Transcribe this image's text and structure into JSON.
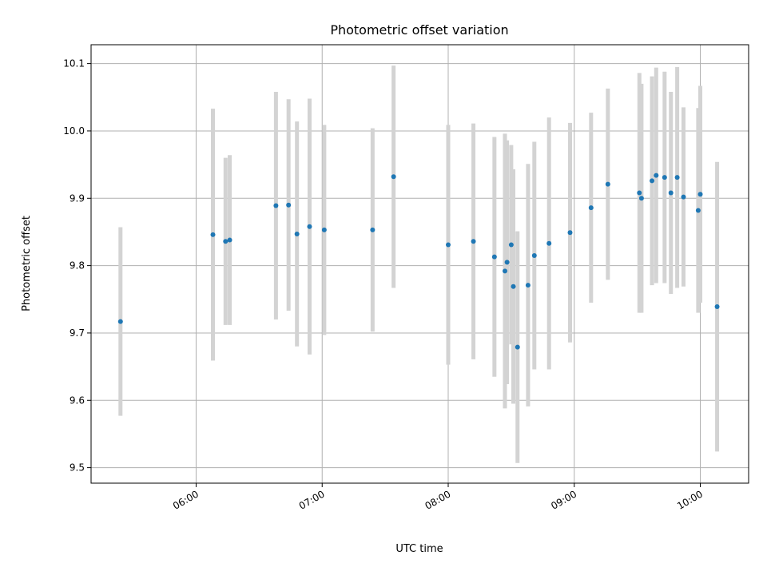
{
  "chart_data": {
    "type": "scatter",
    "title": "Photometric offset variation",
    "xlabel": "UTC time",
    "ylabel": "Photometric offset",
    "x_ticks": [
      "06:00",
      "07:00",
      "08:00",
      "09:00",
      "10:00"
    ],
    "y_ticks": [
      "9.5",
      "9.6",
      "9.7",
      "9.8",
      "9.9",
      "10.0",
      "10.1"
    ],
    "xlim": [
      "05:10",
      "10:23"
    ],
    "ylim": [
      9.477,
      10.128
    ],
    "grid": true,
    "colors": {
      "marker": "#1f77b4",
      "errorbar": "#d3d3d3",
      "grid": "#b0b0b0"
    },
    "series": [
      {
        "points": [
          {
            "t": "05:24",
            "y": 9.717,
            "err": 0.14
          },
          {
            "t": "06:08",
            "y": 9.846,
            "err": 0.187
          },
          {
            "t": "06:14",
            "y": 9.836,
            "err": 0.124
          },
          {
            "t": "06:16",
            "y": 9.838,
            "err": 0.126
          },
          {
            "t": "06:38",
            "y": 9.889,
            "err": 0.169
          },
          {
            "t": "06:44",
            "y": 9.89,
            "err": 0.157
          },
          {
            "t": "06:48",
            "y": 9.847,
            "err": 0.167
          },
          {
            "t": "06:54",
            "y": 9.858,
            "err": 0.19
          },
          {
            "t": "07:01",
            "y": 9.853,
            "err": 0.156
          },
          {
            "t": "07:24",
            "y": 9.853,
            "err": 0.151
          },
          {
            "t": "07:34",
            "y": 9.932,
            "err": 0.165
          },
          {
            "t": "08:00",
            "y": 9.831,
            "err": 0.178
          },
          {
            "t": "08:12",
            "y": 9.836,
            "err": 0.175
          },
          {
            "t": "08:22",
            "y": 9.813,
            "err": 0.178
          },
          {
            "t": "08:27",
            "y": 9.792,
            "err": 0.204
          },
          {
            "t": "08:28",
            "y": 9.805,
            "err": 0.181
          },
          {
            "t": "08:30",
            "y": 9.831,
            "err": 0.148
          },
          {
            "t": "08:31",
            "y": 9.769,
            "err": 0.174
          },
          {
            "t": "08:33",
            "y": 9.679,
            "err": 0.172
          },
          {
            "t": "08:38",
            "y": 9.771,
            "err": 0.18
          },
          {
            "t": "08:41",
            "y": 9.815,
            "err": 0.169
          },
          {
            "t": "08:48",
            "y": 9.833,
            "err": 0.187
          },
          {
            "t": "08:58",
            "y": 9.849,
            "err": 0.163
          },
          {
            "t": "09:08",
            "y": 9.886,
            "err": 0.141
          },
          {
            "t": "09:16",
            "y": 9.921,
            "err": 0.142
          },
          {
            "t": "09:31",
            "y": 9.908,
            "err": 0.178
          },
          {
            "t": "09:32",
            "y": 9.9,
            "err": 0.17
          },
          {
            "t": "09:37",
            "y": 9.926,
            "err": 0.155
          },
          {
            "t": "09:39",
            "y": 9.934,
            "err": 0.16
          },
          {
            "t": "09:43",
            "y": 9.931,
            "err": 0.157
          },
          {
            "t": "09:46",
            "y": 9.908,
            "err": 0.15
          },
          {
            "t": "09:49",
            "y": 9.931,
            "err": 0.164
          },
          {
            "t": "09:52",
            "y": 9.902,
            "err": 0.133
          },
          {
            "t": "09:59",
            "y": 9.882,
            "err": 0.152
          },
          {
            "t": "10:00",
            "y": 9.906,
            "err": 0.161
          },
          {
            "t": "10:08",
            "y": 9.739,
            "err": 0.215
          }
        ]
      }
    ]
  }
}
